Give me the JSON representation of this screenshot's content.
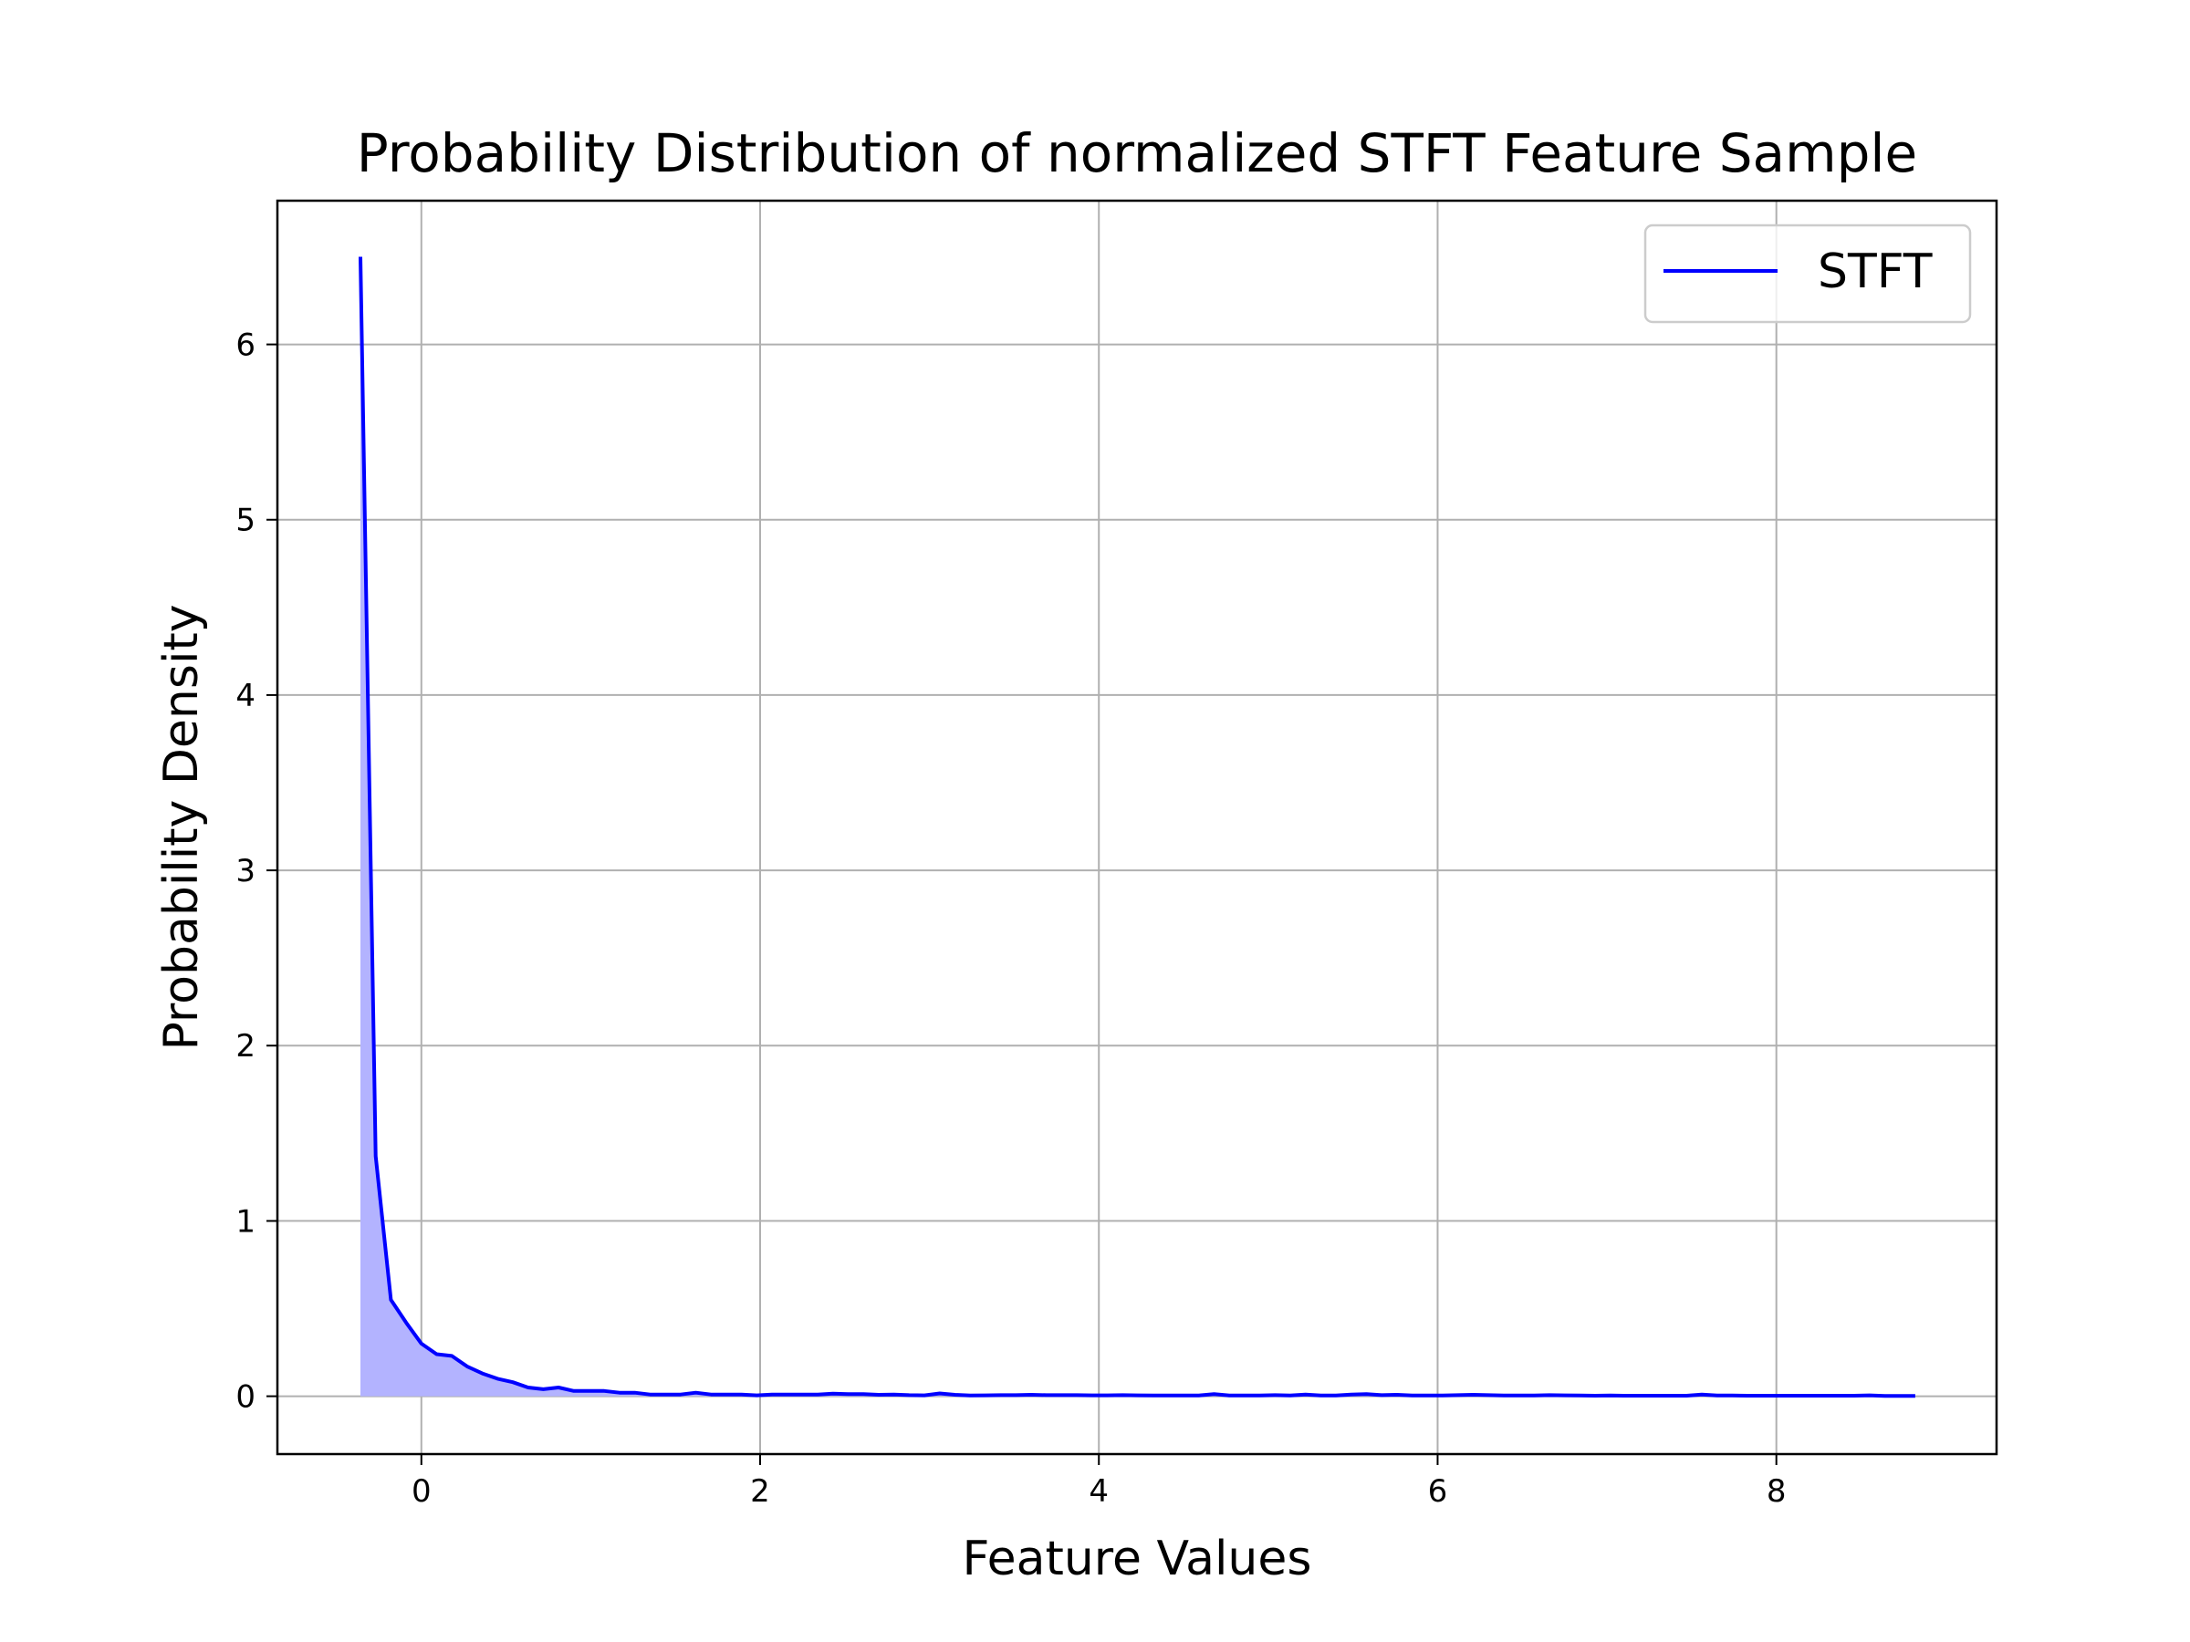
{
  "chart_data": {
    "type": "area",
    "title": "Probability Distribution of normalized STFT Feature Sample",
    "xlabel": "Feature Values",
    "ylabel": "Probability Density",
    "xlim": [
      -0.85,
      9.3
    ],
    "ylim": [
      -0.33,
      6.82
    ],
    "xticks": [
      0,
      2,
      4,
      6,
      8
    ],
    "xtick_labels": [
      "0",
      "2",
      "4",
      "6",
      "8"
    ],
    "yticks": [
      0,
      1,
      2,
      3,
      4,
      5,
      6
    ],
    "ytick_labels": [
      "0",
      "1",
      "2",
      "3",
      "4",
      "5",
      "6"
    ],
    "grid": true,
    "legend": {
      "position": "upper-right",
      "entries": [
        "STFT"
      ]
    },
    "colors": {
      "line": "#0000ff",
      "fill": "#b3b3ff"
    },
    "series": [
      {
        "name": "STFT",
        "fill_under": true,
        "x": [
          -0.36,
          -0.27,
          -0.18,
          -0.09,
          0.0,
          0.09,
          0.18,
          0.27,
          0.36,
          0.45,
          0.54,
          0.63,
          0.72,
          0.81,
          0.9,
          0.99,
          1.08,
          1.17,
          1.26,
          1.35,
          1.44,
          1.53,
          1.62,
          1.71,
          1.8,
          1.89,
          1.98,
          2.07,
          2.16,
          2.25,
          2.34,
          2.43,
          2.52,
          2.61,
          2.7,
          2.79,
          2.88,
          2.97,
          3.06,
          3.15,
          3.24,
          3.33,
          3.42,
          3.51,
          3.6,
          3.69,
          3.78,
          3.87,
          3.96,
          4.05,
          4.14,
          4.23,
          4.32,
          4.41,
          4.5,
          4.59,
          4.68,
          4.77,
          4.86,
          4.95,
          5.04,
          5.13,
          5.22,
          5.31,
          5.4,
          5.49,
          5.58,
          5.67,
          5.76,
          5.85,
          5.94,
          6.03,
          6.12,
          6.21,
          6.3,
          6.39,
          6.48,
          6.57,
          6.66,
          6.75,
          6.84,
          6.93,
          7.02,
          7.11,
          7.2,
          7.29,
          7.38,
          7.47,
          7.56,
          7.65,
          7.74,
          7.83,
          7.92,
          8.01,
          8.1,
          8.19,
          8.28,
          8.37,
          8.46,
          8.55,
          8.64,
          8.73,
          8.82
        ],
        "y": [
          6.5,
          1.37,
          0.55,
          0.42,
          0.3,
          0.24,
          0.23,
          0.17,
          0.13,
          0.1,
          0.08,
          0.05,
          0.04,
          0.05,
          0.03,
          0.03,
          0.03,
          0.02,
          0.02,
          0.01,
          0.01,
          0.01,
          0.02,
          0.01,
          0.01,
          0.01,
          0.005,
          0.01,
          0.01,
          0.01,
          0.01,
          0.015,
          0.012,
          0.012,
          0.008,
          0.01,
          0.006,
          0.005,
          0.016,
          0.008,
          0.004,
          0.005,
          0.006,
          0.006,
          0.008,
          0.006,
          0.006,
          0.006,
          0.005,
          0.005,
          0.006,
          0.005,
          0.004,
          0.004,
          0.004,
          0.004,
          0.012,
          0.004,
          0.004,
          0.004,
          0.006,
          0.004,
          0.01,
          0.004,
          0.004,
          0.01,
          0.012,
          0.006,
          0.008,
          0.004,
          0.004,
          0.004,
          0.006,
          0.008,
          0.006,
          0.004,
          0.004,
          0.004,
          0.006,
          0.005,
          0.004,
          0.003,
          0.004,
          0.003,
          0.003,
          0.003,
          0.003,
          0.003,
          0.01,
          0.004,
          0.004,
          0.003,
          0.003,
          0.003,
          0.003,
          0.003,
          0.003,
          0.003,
          0.003,
          0.005,
          0.002,
          0.002,
          0.002
        ]
      }
    ]
  }
}
